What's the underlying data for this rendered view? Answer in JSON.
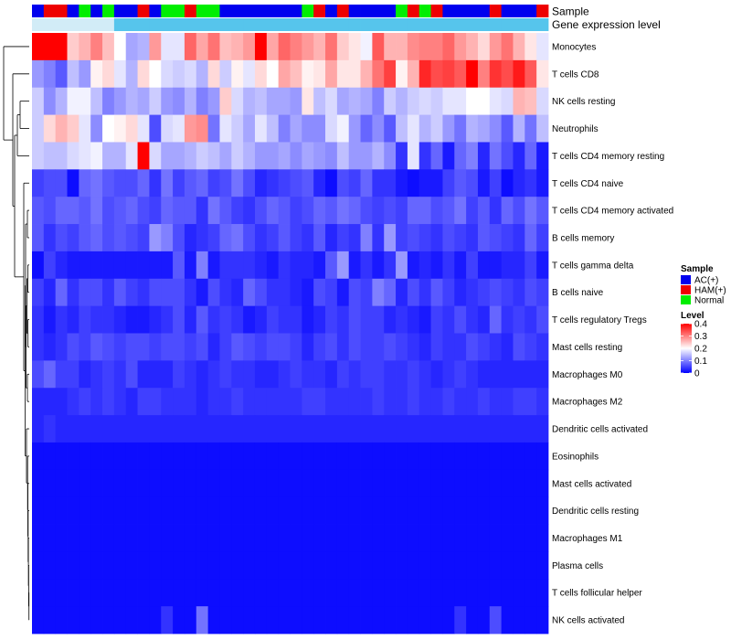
{
  "chart_data": {
    "type": "heatmap",
    "annotation_labels": {
      "sample": "Sample",
      "gene": "Gene expression level"
    },
    "sample_groups": [
      "AC(+)",
      "HAM(+)",
      "HAM(+)",
      "AC(+)",
      "Normal",
      "AC(+)",
      "Normal",
      "AC(+)",
      "AC(+)",
      "HAM(+)",
      "AC(+)",
      "Normal",
      "Normal",
      "HAM(+)",
      "Normal",
      "Normal",
      "AC(+)",
      "AC(+)",
      "AC(+)",
      "AC(+)",
      "AC(+)",
      "AC(+)",
      "AC(+)",
      "Normal",
      "HAM(+)",
      "AC(+)",
      "HAM(+)",
      "AC(+)",
      "AC(+)",
      "AC(+)",
      "AC(+)",
      "Normal",
      "HAM(+)",
      "Normal",
      "HAM(+)",
      "AC(+)",
      "AC(+)",
      "AC(+)",
      "AC(+)",
      "HAM(+)",
      "AC(+)",
      "AC(+)",
      "AC(+)",
      "HAM(+)"
    ],
    "gene_expression_split": 7,
    "gene_expression_colors": {
      "low": "#d2ecf7",
      "high": "#56c5ec"
    },
    "rows": [
      "Monocytes",
      "T cells CD8",
      "NK cells resting",
      "Neutrophils",
      "T cells CD4 memory resting",
      "T cells CD4 naive",
      "T cells CD4 memory activated",
      "B cells memory",
      "T cells gamma delta",
      "B cells naive",
      "T cells regulatory  Tregs",
      "Mast cells resting",
      "Macrophages M0",
      "Macrophages M2",
      "Dendritic cells activated",
      "Eosinophils",
      "Mast cells activated",
      "Dendritic cells resting",
      "Macrophages M1",
      "Plasma cells",
      "T cells follicular helper",
      "NK cells activated"
    ],
    "values": [
      [
        0.4,
        0.4,
        0.4,
        0.24,
        0.26,
        0.3,
        0.25,
        0.2,
        0.13,
        0.14,
        0.28,
        0.18,
        0.18,
        0.32,
        0.27,
        0.31,
        0.25,
        0.26,
        0.28,
        0.4,
        0.27,
        0.32,
        0.3,
        0.28,
        0.26,
        0.31,
        0.24,
        0.22,
        0.19,
        0.33,
        0.26,
        0.26,
        0.29,
        0.3,
        0.3,
        0.32,
        0.28,
        0.26,
        0.23,
        0.28,
        0.31,
        0.26,
        0.22,
        0.18
      ],
      [
        0.12,
        0.1,
        0.07,
        0.15,
        0.12,
        0.21,
        0.23,
        0.18,
        0.14,
        0.23,
        0.2,
        0.17,
        0.16,
        0.17,
        0.14,
        0.23,
        0.16,
        0.21,
        0.18,
        0.23,
        0.2,
        0.27,
        0.25,
        0.21,
        0.22,
        0.27,
        0.22,
        0.22,
        0.26,
        0.31,
        0.35,
        0.21,
        0.26,
        0.37,
        0.34,
        0.35,
        0.33,
        0.4,
        0.3,
        0.36,
        0.34,
        0.38,
        0.33,
        0.22
      ],
      [
        0.16,
        0.11,
        0.14,
        0.19,
        0.19,
        0.15,
        0.1,
        0.12,
        0.14,
        0.13,
        0.16,
        0.12,
        0.11,
        0.14,
        0.1,
        0.12,
        0.24,
        0.17,
        0.14,
        0.15,
        0.13,
        0.13,
        0.12,
        0.22,
        0.15,
        0.17,
        0.13,
        0.14,
        0.13,
        0.1,
        0.16,
        0.14,
        0.16,
        0.17,
        0.16,
        0.18,
        0.18,
        0.2,
        0.2,
        0.18,
        0.17,
        0.26,
        0.25,
        0.17
      ],
      [
        0.16,
        0.23,
        0.26,
        0.24,
        0.18,
        0.11,
        0.2,
        0.21,
        0.23,
        0.18,
        0.06,
        0.17,
        0.18,
        0.28,
        0.29,
        0.09,
        0.18,
        0.16,
        0.13,
        0.18,
        0.15,
        0.1,
        0.13,
        0.11,
        0.11,
        0.17,
        0.19,
        0.12,
        0.08,
        0.11,
        0.07,
        0.15,
        0.18,
        0.14,
        0.16,
        0.12,
        0.09,
        0.14,
        0.13,
        0.11,
        0.07,
        0.14,
        0.09,
        0.15
      ],
      [
        0.16,
        0.15,
        0.15,
        0.17,
        0.18,
        0.19,
        0.14,
        0.14,
        0.18,
        0.4,
        0.17,
        0.13,
        0.13,
        0.14,
        0.16,
        0.15,
        0.13,
        0.16,
        0.14,
        0.12,
        0.12,
        0.13,
        0.11,
        0.13,
        0.12,
        0.11,
        0.15,
        0.12,
        0.12,
        0.14,
        0.11,
        0.04,
        0.18,
        0.04,
        0.08,
        0.02,
        0.08,
        0.1,
        0.03,
        0.09,
        0.06,
        0.03,
        0.08,
        0.02
      ],
      [
        0.05,
        0.06,
        0.06,
        0.01,
        0.08,
        0.09,
        0.07,
        0.06,
        0.06,
        0.08,
        0.04,
        0.09,
        0.05,
        0.07,
        0.08,
        0.05,
        0.06,
        0.09,
        0.06,
        0.03,
        0.04,
        0.05,
        0.06,
        0.07,
        0.03,
        0.01,
        0.06,
        0.05,
        0.08,
        0.04,
        0.04,
        0.02,
        0.01,
        0.02,
        0.02,
        0.05,
        0.07,
        0.06,
        0.02,
        0.05,
        0.01,
        0.03,
        0.04,
        0.02
      ],
      [
        0.07,
        0.06,
        0.08,
        0.08,
        0.07,
        0.09,
        0.06,
        0.07,
        0.08,
        0.06,
        0.05,
        0.08,
        0.07,
        0.07,
        0.04,
        0.09,
        0.07,
        0.05,
        0.04,
        0.06,
        0.08,
        0.07,
        0.05,
        0.06,
        0.08,
        0.07,
        0.09,
        0.08,
        0.06,
        0.05,
        0.06,
        0.05,
        0.08,
        0.08,
        0.06,
        0.07,
        0.09,
        0.05,
        0.07,
        0.04,
        0.08,
        0.06,
        0.09,
        0.07
      ],
      [
        0.07,
        0.04,
        0.06,
        0.05,
        0.07,
        0.08,
        0.06,
        0.07,
        0.06,
        0.05,
        0.12,
        0.1,
        0.06,
        0.03,
        0.04,
        0.05,
        0.08,
        0.09,
        0.06,
        0.04,
        0.05,
        0.07,
        0.05,
        0.04,
        0.07,
        0.03,
        0.05,
        0.04,
        0.1,
        0.04,
        0.12,
        0.05,
        0.06,
        0.05,
        0.04,
        0.06,
        0.05,
        0.04,
        0.07,
        0.06,
        0.05,
        0.04,
        0.08,
        0.05
      ],
      [
        0.01,
        0.05,
        0.03,
        0.02,
        0.02,
        0.02,
        0.02,
        0.02,
        0.02,
        0.02,
        0.02,
        0.02,
        0.07,
        0.02,
        0.1,
        0.02,
        0.04,
        0.04,
        0.04,
        0.03,
        0.02,
        0.04,
        0.03,
        0.03,
        0.02,
        0.07,
        0.12,
        0.02,
        0.04,
        0.02,
        0.04,
        0.12,
        0.02,
        0.03,
        0.02,
        0.04,
        0.02,
        0.05,
        0.02,
        0.02,
        0.03,
        0.03,
        0.05,
        0.02
      ],
      [
        0.05,
        0.03,
        0.08,
        0.04,
        0.06,
        0.06,
        0.04,
        0.07,
        0.05,
        0.04,
        0.06,
        0.06,
        0.06,
        0.04,
        0.02,
        0.06,
        0.04,
        0.03,
        0.08,
        0.06,
        0.04,
        0.04,
        0.03,
        0.02,
        0.06,
        0.05,
        0.02,
        0.06,
        0.05,
        0.1,
        0.08,
        0.03,
        0.06,
        0.04,
        0.07,
        0.05,
        0.03,
        0.04,
        0.05,
        0.06,
        0.05,
        0.04,
        0.06,
        0.05
      ],
      [
        0.04,
        0.02,
        0.04,
        0.03,
        0.05,
        0.04,
        0.04,
        0.03,
        0.02,
        0.02,
        0.03,
        0.04,
        0.06,
        0.03,
        0.07,
        0.04,
        0.05,
        0.04,
        0.02,
        0.03,
        0.05,
        0.04,
        0.04,
        0.02,
        0.03,
        0.05,
        0.04,
        0.06,
        0.05,
        0.05,
        0.03,
        0.04,
        0.03,
        0.02,
        0.05,
        0.04,
        0.06,
        0.04,
        0.03,
        0.08,
        0.04,
        0.05,
        0.04,
        0.06
      ],
      [
        0.04,
        0.03,
        0.04,
        0.06,
        0.05,
        0.07,
        0.06,
        0.05,
        0.06,
        0.06,
        0.05,
        0.06,
        0.06,
        0.05,
        0.06,
        0.03,
        0.05,
        0.07,
        0.06,
        0.05,
        0.06,
        0.06,
        0.05,
        0.03,
        0.05,
        0.06,
        0.04,
        0.06,
        0.05,
        0.05,
        0.06,
        0.05,
        0.04,
        0.03,
        0.05,
        0.04,
        0.04,
        0.06,
        0.05,
        0.04,
        0.03,
        0.06,
        0.05,
        0.04
      ],
      [
        0.06,
        0.08,
        0.05,
        0.05,
        0.03,
        0.04,
        0.05,
        0.04,
        0.06,
        0.03,
        0.03,
        0.03,
        0.05,
        0.04,
        0.03,
        0.04,
        0.05,
        0.04,
        0.04,
        0.03,
        0.03,
        0.04,
        0.05,
        0.04,
        0.04,
        0.03,
        0.05,
        0.04,
        0.05,
        0.05,
        0.04,
        0.04,
        0.05,
        0.04,
        0.03,
        0.04,
        0.05,
        0.04,
        0.03,
        0.03,
        0.03,
        0.03,
        0.03,
        0.03
      ],
      [
        0.03,
        0.03,
        0.03,
        0.04,
        0.05,
        0.04,
        0.05,
        0.04,
        0.03,
        0.05,
        0.05,
        0.04,
        0.04,
        0.04,
        0.03,
        0.04,
        0.04,
        0.05,
        0.04,
        0.04,
        0.04,
        0.04,
        0.04,
        0.05,
        0.05,
        0.04,
        0.04,
        0.04,
        0.04,
        0.05,
        0.04,
        0.04,
        0.05,
        0.04,
        0.04,
        0.05,
        0.04,
        0.04,
        0.05,
        0.04,
        0.04,
        0.05,
        0.05,
        0.04
      ],
      [
        0.03,
        0.04,
        0.03,
        0.03,
        0.03,
        0.03,
        0.03,
        0.03,
        0.03,
        0.03,
        0.03,
        0.03,
        0.03,
        0.03,
        0.03,
        0.03,
        0.03,
        0.03,
        0.03,
        0.03,
        0.03,
        0.03,
        0.03,
        0.03,
        0.03,
        0.03,
        0.03,
        0.03,
        0.03,
        0.03,
        0.03,
        0.03,
        0.03,
        0.03,
        0.03,
        0.03,
        0.03,
        0.03,
        0.03,
        0.03,
        0.03,
        0.03,
        0.03,
        0.03
      ],
      [
        0.01,
        0.01,
        0.01,
        0.01,
        0.01,
        0.01,
        0.01,
        0.01,
        0.01,
        0.01,
        0.01,
        0.01,
        0.01,
        0.01,
        0.01,
        0.01,
        0.01,
        0.01,
        0.01,
        0.01,
        0.01,
        0.01,
        0.01,
        0.01,
        0.01,
        0.01,
        0.01,
        0.01,
        0.01,
        0.01,
        0.01,
        0.01,
        0.01,
        0.01,
        0.01,
        0.01,
        0.01,
        0.01,
        0.01,
        0.01,
        0.01,
        0.01,
        0.01,
        0.01
      ],
      [
        0.01,
        0.01,
        0.01,
        0.01,
        0.01,
        0.01,
        0.01,
        0.01,
        0.01,
        0.01,
        0.01,
        0.01,
        0.01,
        0.01,
        0.01,
        0.01,
        0.01,
        0.01,
        0.01,
        0.01,
        0.01,
        0.01,
        0.01,
        0.01,
        0.01,
        0.01,
        0.01,
        0.01,
        0.01,
        0.01,
        0.01,
        0.01,
        0.01,
        0.01,
        0.01,
        0.01,
        0.01,
        0.01,
        0.01,
        0.01,
        0.01,
        0.01,
        0.01,
        0.01
      ],
      [
        0.01,
        0.01,
        0.01,
        0.01,
        0.01,
        0.01,
        0.01,
        0.01,
        0.01,
        0.01,
        0.01,
        0.01,
        0.01,
        0.01,
        0.01,
        0.01,
        0.01,
        0.01,
        0.01,
        0.01,
        0.01,
        0.01,
        0.01,
        0.01,
        0.01,
        0.01,
        0.01,
        0.01,
        0.01,
        0.01,
        0.01,
        0.01,
        0.01,
        0.01,
        0.01,
        0.01,
        0.01,
        0.01,
        0.01,
        0.01,
        0.01,
        0.01,
        0.01,
        0.01
      ],
      [
        0.01,
        0.01,
        0.01,
        0.01,
        0.01,
        0.01,
        0.01,
        0.01,
        0.01,
        0.01,
        0.01,
        0.01,
        0.01,
        0.01,
        0.01,
        0.01,
        0.01,
        0.01,
        0.01,
        0.01,
        0.01,
        0.01,
        0.01,
        0.01,
        0.01,
        0.01,
        0.01,
        0.01,
        0.01,
        0.01,
        0.01,
        0.01,
        0.01,
        0.01,
        0.01,
        0.01,
        0.01,
        0.01,
        0.01,
        0.01,
        0.01,
        0.01,
        0.01,
        0.01
      ],
      [
        0.01,
        0.01,
        0.01,
        0.01,
        0.01,
        0.01,
        0.01,
        0.01,
        0.01,
        0.01,
        0.01,
        0.01,
        0.01,
        0.01,
        0.01,
        0.01,
        0.01,
        0.01,
        0.01,
        0.01,
        0.01,
        0.01,
        0.01,
        0.01,
        0.01,
        0.01,
        0.01,
        0.01,
        0.01,
        0.01,
        0.01,
        0.01,
        0.01,
        0.01,
        0.01,
        0.01,
        0.01,
        0.01,
        0.01,
        0.01,
        0.01,
        0.01,
        0.01,
        0.01
      ],
      [
        0.01,
        0.01,
        0.01,
        0.01,
        0.01,
        0.01,
        0.01,
        0.01,
        0.01,
        0.01,
        0.01,
        0.01,
        0.01,
        0.01,
        0.01,
        0.01,
        0.01,
        0.01,
        0.01,
        0.01,
        0.01,
        0.01,
        0.01,
        0.01,
        0.01,
        0.01,
        0.01,
        0.01,
        0.01,
        0.01,
        0.01,
        0.01,
        0.01,
        0.01,
        0.01,
        0.01,
        0.01,
        0.01,
        0.01,
        0.01,
        0.01,
        0.01,
        0.01,
        0.01
      ],
      [
        0.01,
        0.01,
        0.01,
        0.01,
        0.01,
        0.01,
        0.01,
        0.01,
        0.01,
        0.01,
        0.01,
        0.04,
        0.01,
        0.01,
        0.09,
        0.01,
        0.01,
        0.01,
        0.01,
        0.01,
        0.01,
        0.01,
        0.01,
        0.01,
        0.01,
        0.01,
        0.01,
        0.01,
        0.01,
        0.01,
        0.01,
        0.01,
        0.01,
        0.01,
        0.01,
        0.01,
        0.04,
        0.01,
        0.01,
        0.06,
        0.01,
        0.01,
        0.01,
        0.01
      ]
    ],
    "legend_sample": {
      "title": "Sample",
      "entries": [
        {
          "label": "AC(+)",
          "color": "#0000ee"
        },
        {
          "label": "HAM(+)",
          "color": "#ee0000"
        },
        {
          "label": "Normal",
          "color": "#00ee00"
        }
      ]
    },
    "legend_level": {
      "title": "Level",
      "ticks": [
        0.4,
        0.3,
        0.2,
        0.1,
        0
      ],
      "range": [
        0,
        0.4
      ]
    },
    "color_scale": {
      "low": "#0000ff",
      "mid": "#ffffff",
      "high": "#ff0000",
      "mid_value": 0.2
    }
  }
}
